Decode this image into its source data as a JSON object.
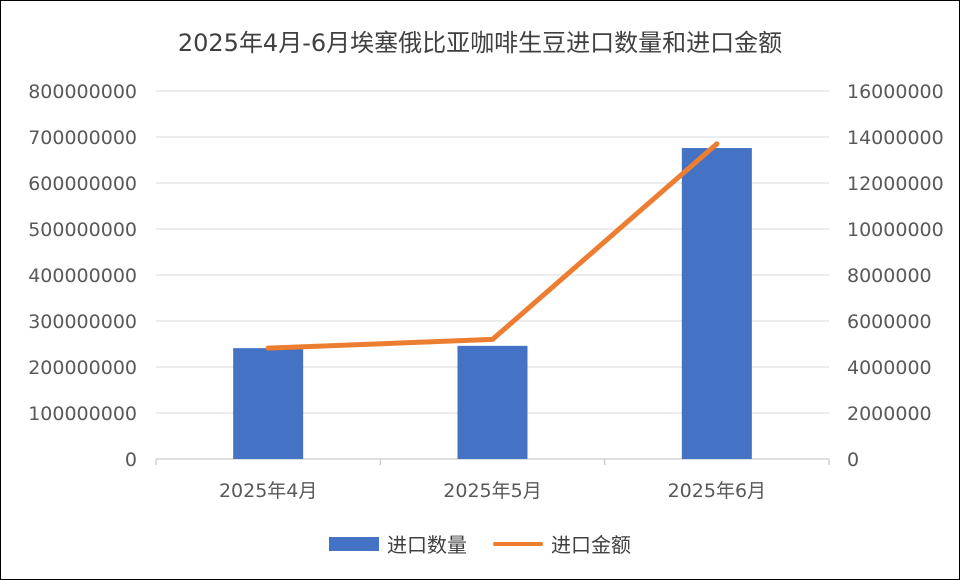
{
  "chart_data": {
    "type": "bar",
    "title": "2025年4月-6月埃塞俄比亚咖啡生豆进口数量和进口金额",
    "categories": [
      "2025年4月",
      "2025年5月",
      "2025年6月"
    ],
    "series": [
      {
        "name": "进口数量",
        "type": "bar",
        "axis": "left",
        "color": "#4472C4",
        "values": [
          241000000,
          246000000,
          676000000
        ]
      },
      {
        "name": "进口金额",
        "type": "line",
        "axis": "right",
        "color": "#ED7D31",
        "values": [
          4820000,
          5200000,
          13700000
        ]
      }
    ],
    "y_left": {
      "ylim": [
        0,
        800000000
      ],
      "ticks": [
        "0",
        "100000000",
        "200000000",
        "300000000",
        "400000000",
        "500000000",
        "600000000",
        "700000000",
        "800000000"
      ]
    },
    "y_right": {
      "ylim": [
        0,
        16000000
      ],
      "ticks": [
        "0",
        "2000000",
        "4000000",
        "6000000",
        "8000000",
        "10000000",
        "12000000",
        "14000000",
        "16000000"
      ]
    },
    "grid": true,
    "legend_position": "bottom"
  }
}
